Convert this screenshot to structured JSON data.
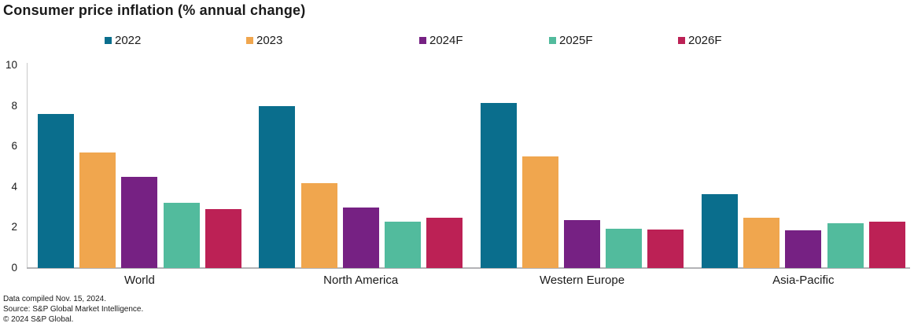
{
  "title": "Consumer price inflation (% annual change)",
  "footer": {
    "compiled": "Data compiled Nov. 15, 2024.",
    "source": "Source: S&P Global Market Intelligence.",
    "copyright": "© 2024 S&P Global."
  },
  "chart_data": {
    "type": "bar",
    "title": "Consumer price inflation (% annual change)",
    "categories": [
      "World",
      "North America",
      "Western Europe",
      "Asia-Pacific"
    ],
    "series": [
      {
        "name": "2022",
        "color": "#0a6e8d",
        "values": [
          7.6,
          8.0,
          8.15,
          3.65
        ]
      },
      {
        "name": "2023",
        "color": "#f0a64e",
        "values": [
          5.7,
          4.2,
          5.5,
          2.5
        ]
      },
      {
        "name": "2024F",
        "color": "#762183",
        "values": [
          4.5,
          3.0,
          2.35,
          1.85
        ]
      },
      {
        "name": "2025F",
        "color": "#52bb9d",
        "values": [
          3.2,
          2.3,
          1.95,
          2.2
        ]
      },
      {
        "name": "2026F",
        "color": "#bc2155",
        "values": [
          2.9,
          2.5,
          1.9,
          2.3
        ]
      }
    ],
    "xlabel": "",
    "ylabel": "",
    "ylim": [
      0,
      10
    ],
    "yticks": [
      0,
      2,
      4,
      6,
      8,
      10
    ],
    "grid": false,
    "legend_position": "top"
  }
}
